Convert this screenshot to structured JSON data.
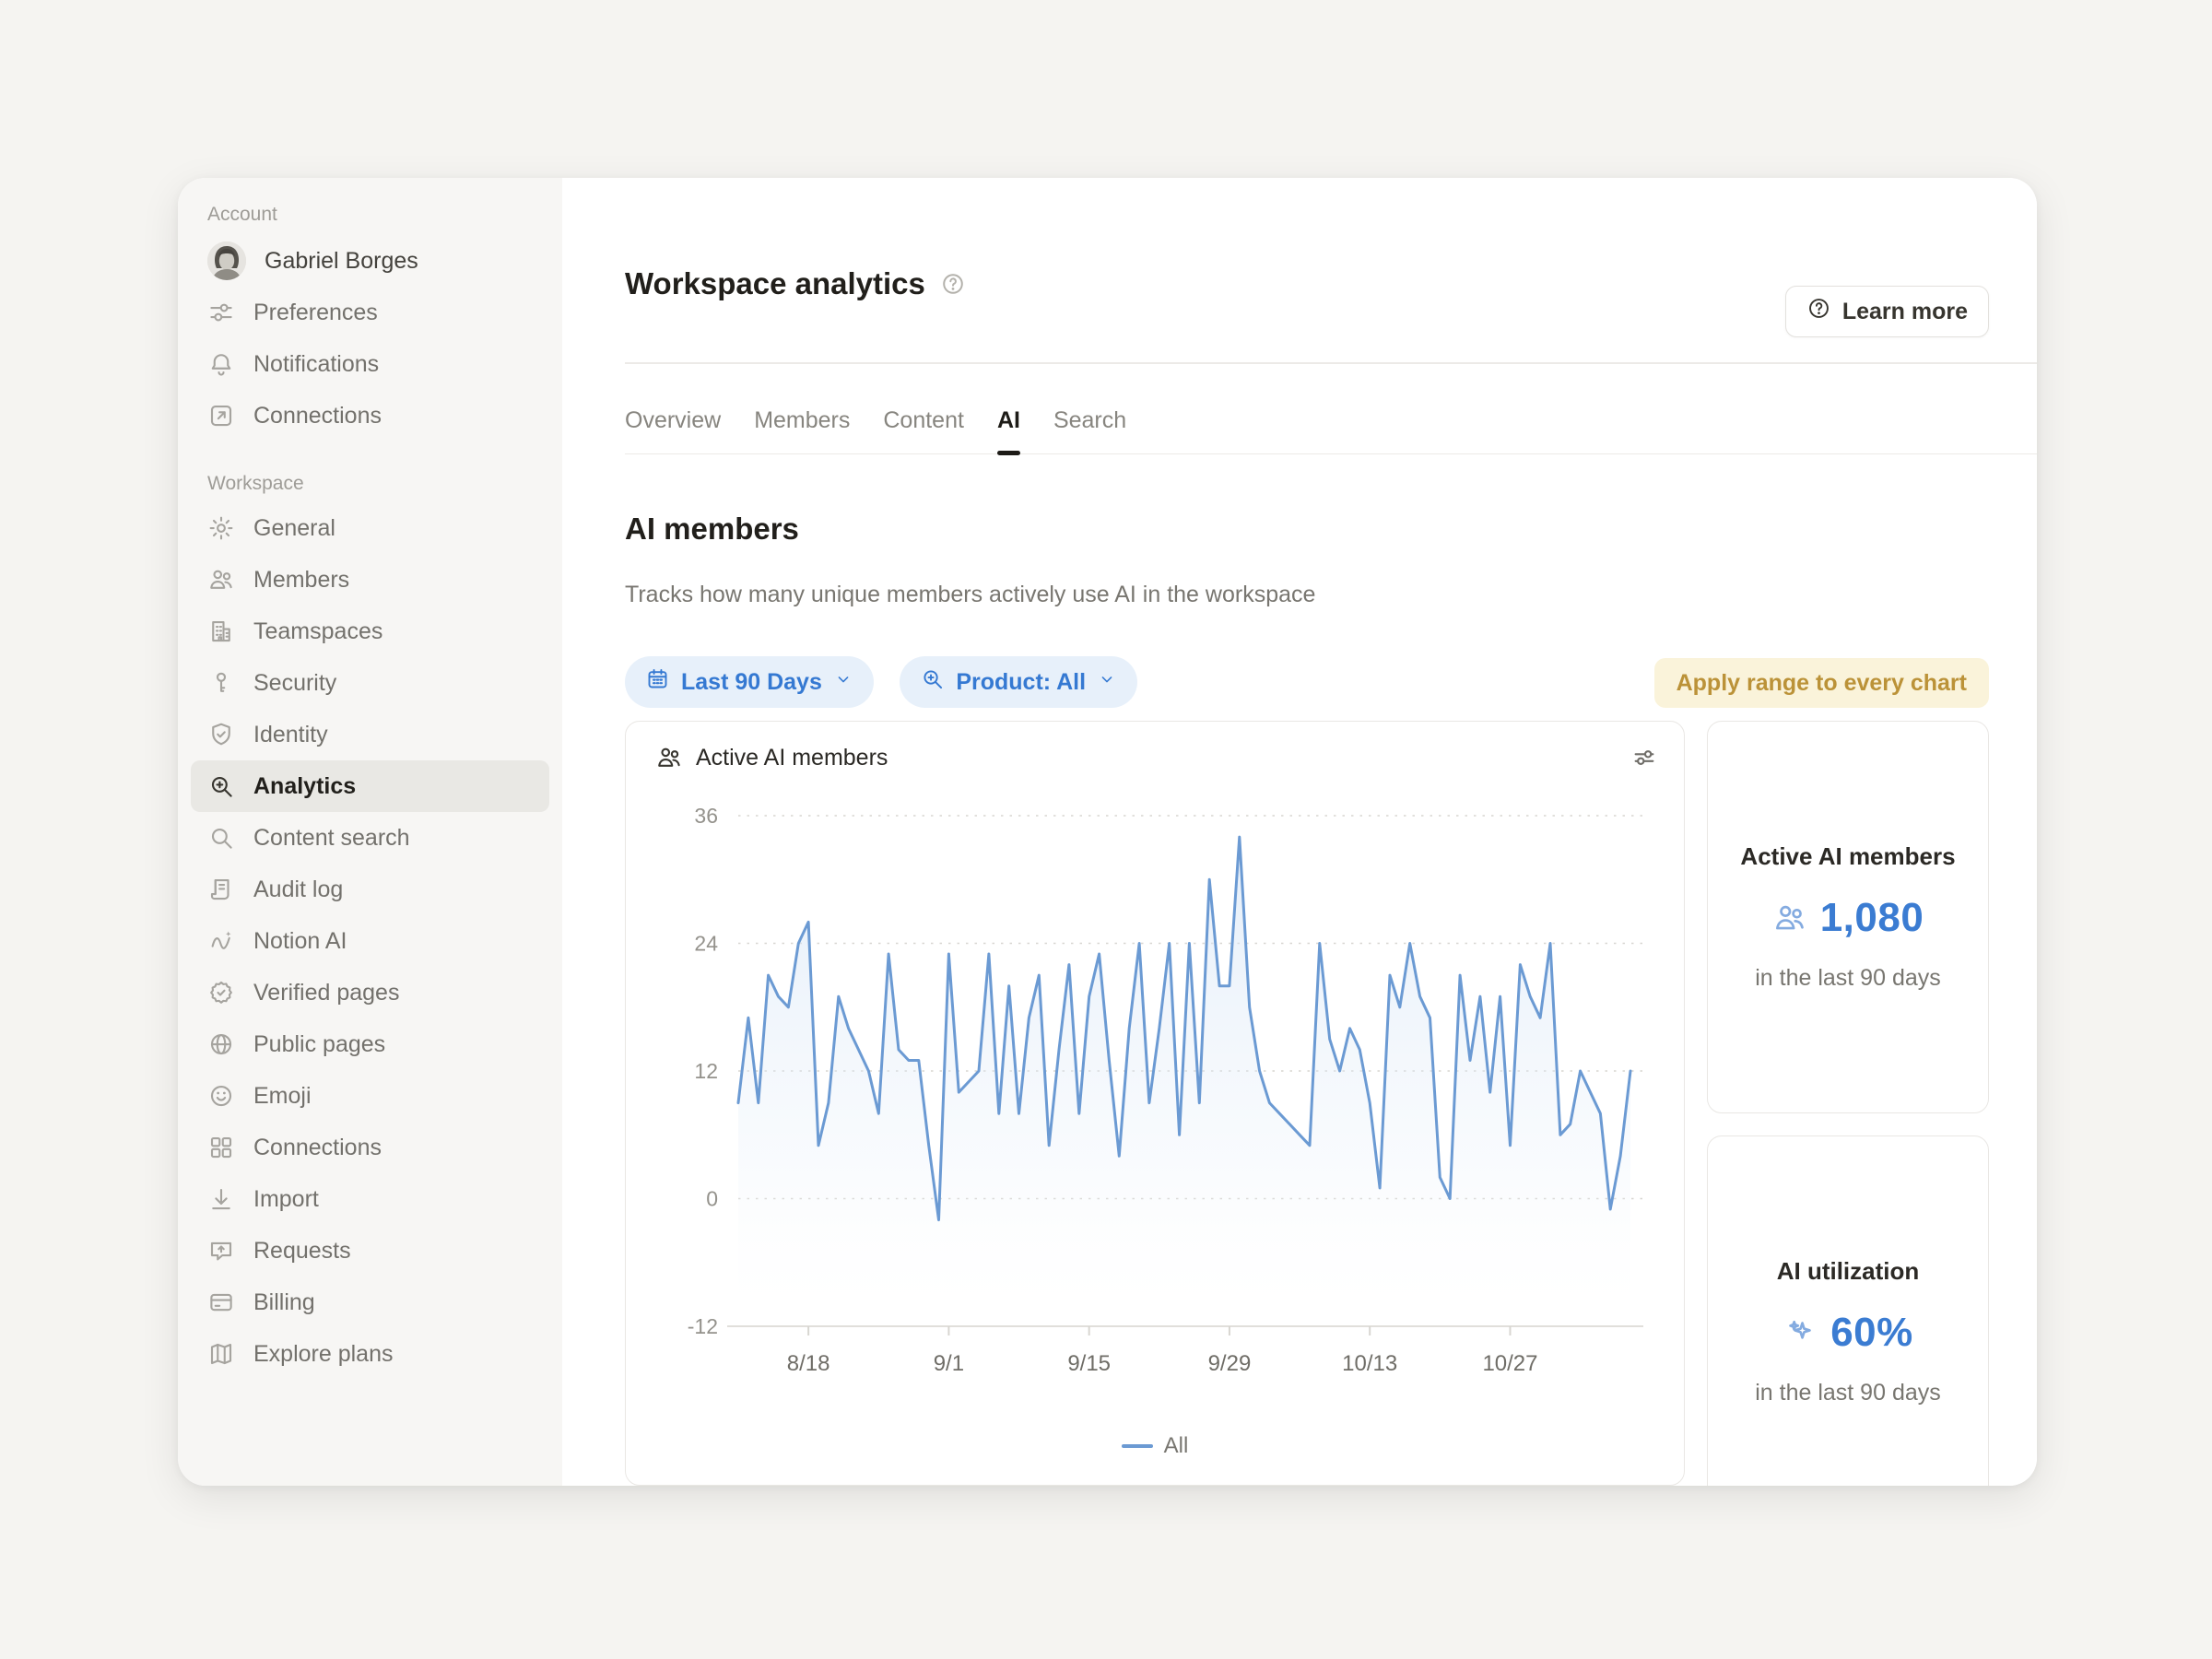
{
  "theme": {
    "accent_blue": "#3b7cd2",
    "chip_bg": "#e7f0fa",
    "chip_text": "#3579d2",
    "apply_text": "#bb9238",
    "apply_bg": "#faf3da",
    "line_color": "#6b9ad3"
  },
  "sidebar": {
    "account_label": "Account",
    "user": {
      "name": "Gabriel Borges",
      "avatar": "portrait-avatar"
    },
    "account_items": [
      {
        "label": "Preferences",
        "icon": "preferences-icon"
      },
      {
        "label": "Notifications",
        "icon": "bell-icon"
      },
      {
        "label": "Connections",
        "icon": "external-link-icon"
      }
    ],
    "workspace_label": "Workspace",
    "workspace_items": [
      {
        "label": "General",
        "icon": "gear-icon"
      },
      {
        "label": "Members",
        "icon": "people-icon"
      },
      {
        "label": "Teamspaces",
        "icon": "building-icon"
      },
      {
        "label": "Security",
        "icon": "key-icon"
      },
      {
        "label": "Identity",
        "icon": "shield-check-icon"
      },
      {
        "label": "Analytics",
        "icon": "zoom-plus-icon",
        "selected": true
      },
      {
        "label": "Content search",
        "icon": "search-icon"
      },
      {
        "label": "Audit log",
        "icon": "scroll-icon"
      },
      {
        "label": "Notion AI",
        "icon": "notion-ai-icon"
      },
      {
        "label": "Verified pages",
        "icon": "badge-check-icon"
      },
      {
        "label": "Public pages",
        "icon": "globe-icon"
      },
      {
        "label": "Emoji",
        "icon": "smiley-icon"
      },
      {
        "label": "Connections",
        "icon": "grid-icon"
      },
      {
        "label": "Import",
        "icon": "import-icon"
      },
      {
        "label": "Requests",
        "icon": "request-icon"
      },
      {
        "label": "Billing",
        "icon": "card-icon"
      },
      {
        "label": "Explore plans",
        "icon": "map-icon"
      }
    ]
  },
  "header": {
    "title": "Workspace analytics",
    "help_icon": "help-icon",
    "learn_more_label": "Learn more"
  },
  "tabs": [
    {
      "label": "Overview",
      "active": false
    },
    {
      "label": "Members",
      "active": false
    },
    {
      "label": "Content",
      "active": false
    },
    {
      "label": "AI",
      "active": true
    },
    {
      "label": "Search",
      "active": false
    }
  ],
  "section": {
    "title": "AI members",
    "description": "Tracks how many unique members actively use AI in the workspace"
  },
  "filters": {
    "date_range": {
      "label": "Last 90 Days",
      "icon": "calendar-icon"
    },
    "product": {
      "label": "Product: All",
      "icon": "zoom-plus-icon"
    },
    "apply_label": "Apply range to every chart"
  },
  "chart_data": {
    "type": "line",
    "title": "Active AI members",
    "title_icon": "people-icon",
    "legend_position": "bottom",
    "grid": "dotted horizontal",
    "ylim": [
      -12,
      36
    ],
    "yticks": [
      36,
      24,
      12,
      0,
      -12
    ],
    "x_tick_labels": [
      "8/18",
      "9/1",
      "9/15",
      "9/29",
      "10/13",
      "10/27"
    ],
    "x_tick_indices": [
      7,
      21,
      35,
      49,
      63,
      77
    ],
    "series": [
      {
        "name": "All",
        "values": [
          9,
          17,
          9,
          21,
          19,
          18,
          24,
          26,
          5,
          9,
          19,
          16,
          14,
          12,
          8,
          23,
          14,
          13,
          13,
          5,
          -2,
          23,
          10,
          11,
          12,
          23,
          8,
          20,
          8,
          17,
          21,
          5,
          14,
          22,
          8,
          19,
          23,
          13,
          4,
          16,
          24,
          9,
          16,
          24,
          6,
          24,
          9,
          30,
          20,
          20,
          34,
          18,
          12,
          9,
          8,
          7,
          6,
          5,
          24,
          15,
          12,
          16,
          14,
          9,
          1,
          21,
          18,
          24,
          19,
          17,
          2,
          0,
          21,
          13,
          19,
          10,
          19,
          5,
          22,
          19,
          17,
          24,
          6,
          7,
          12,
          10,
          8,
          -1,
          4,
          12
        ]
      }
    ]
  },
  "stats": [
    {
      "title": "Active AI members",
      "icon": "people-icon",
      "value": "1,080",
      "caption": "in the last 90 days"
    },
    {
      "title": "AI utilization",
      "icon": "sparkles-icon",
      "value": "60%",
      "caption": "in the last 90 days"
    }
  ]
}
